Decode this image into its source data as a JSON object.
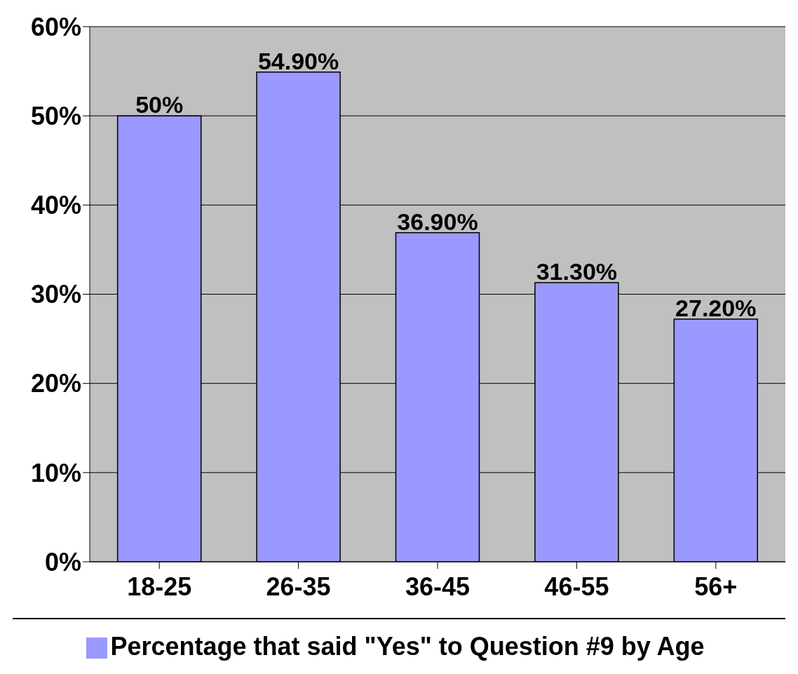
{
  "chart_data": {
    "type": "bar",
    "categories": [
      "18-25",
      "26-35",
      "36-45",
      "46-55",
      "56+"
    ],
    "series": [
      {
        "name": "Percentage that said \"Yes\" to Question #9 by Age",
        "color": "#9999ff",
        "values": [
          50,
          54.9,
          36.9,
          31.3,
          27.2
        ],
        "value_labels": [
          "50%",
          "54.90%",
          "36.90%",
          "31.30%",
          "27.20%"
        ]
      }
    ],
    "ylim": [
      0,
      60
    ],
    "yticks": [
      {
        "value": 0,
        "label": "0%"
      },
      {
        "value": 10,
        "label": "10%"
      },
      {
        "value": 20,
        "label": "20%"
      },
      {
        "value": 30,
        "label": "30%"
      },
      {
        "value": 40,
        "label": "40%"
      },
      {
        "value": 50,
        "label": "50%"
      },
      {
        "value": 60,
        "label": "60%"
      }
    ],
    "grid": "y",
    "legend": "bottom"
  }
}
